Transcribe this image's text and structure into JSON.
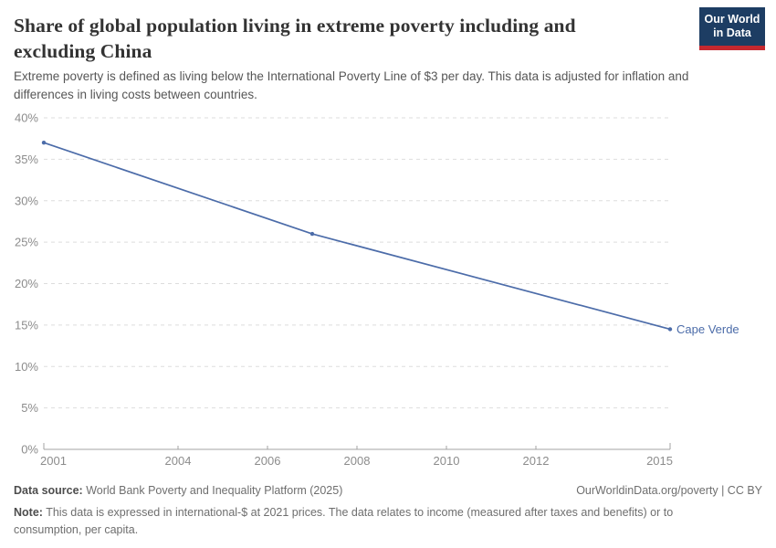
{
  "header": {
    "title": "Share of global population living in extreme poverty including and excluding China",
    "subtitle": "Extreme poverty is defined as living below the International Poverty Line of $3 per day. This data is adjusted for inflation and differences in living costs between countries.",
    "logo": {
      "line1": "Our World",
      "line2": "in Data",
      "bg_color": "#1d3d63",
      "bar_color": "#c5282f"
    }
  },
  "chart_data": {
    "type": "line",
    "title": "Share of global population living in extreme poverty including and excluding China",
    "x": [
      2001,
      2007,
      2015
    ],
    "series": [
      {
        "name": "Cape Verde",
        "values": [
          37,
          26,
          14.5
        ],
        "color": "#4C6CA9"
      }
    ],
    "xlabel": "",
    "ylabel": "",
    "xlim": [
      2001,
      2015
    ],
    "ylim": [
      0,
      40
    ],
    "xticks": [
      2001,
      2004,
      2006,
      2008,
      2010,
      2012,
      2015
    ],
    "yticks": [
      0,
      5,
      10,
      15,
      20,
      25,
      30,
      35,
      40
    ],
    "ytick_suffix": "%",
    "grid": "horizontal-dashed",
    "legend_position": "end-of-line-label"
  },
  "footer": {
    "source_label": "Data source:",
    "source_text": "World Bank Poverty and Inequality Platform (2025)",
    "rights": "OurWorldinData.org/poverty | CC BY",
    "note_label": "Note:",
    "note_text": "This data is expressed in international-$ at 2021 prices. The data relates to income (measured after taxes and benefits) or to consumption, per capita."
  },
  "colors": {
    "line": "#4C6CA9",
    "grid": "#dddddd",
    "axis": "#a3a3a3",
    "tick_label": "#8c8c8c",
    "title": "#333333",
    "subtitle": "#565656"
  }
}
